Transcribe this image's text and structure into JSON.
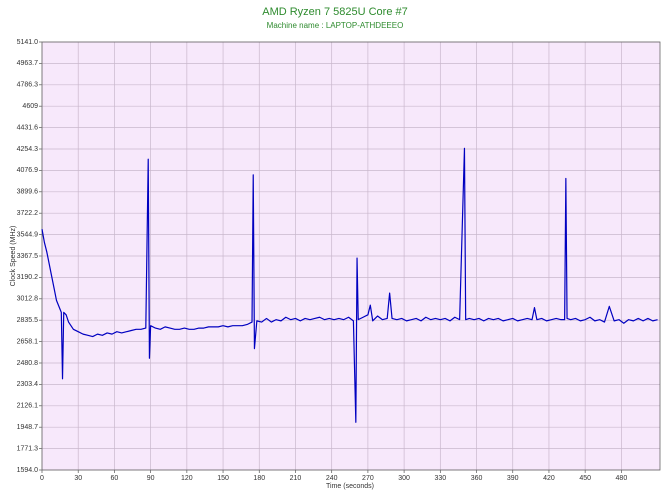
{
  "chart_data": {
    "type": "line",
    "title": "AMD Ryzen 7 5825U Core #7",
    "subtitle": "Machine name : LAPTOP-ATHDEEEO",
    "x_label": "Time (seconds)",
    "y_label": "Clock Speed (MHz)",
    "xlim": [
      0,
      512
    ],
    "ylim": [
      1594.0,
      5141.0
    ],
    "xticks": [
      0,
      30,
      60,
      90,
      120,
      150,
      180,
      210,
      240,
      270,
      300,
      330,
      360,
      390,
      420,
      450,
      480
    ],
    "yticks": [
      {
        "value": 1594.0,
        "label": "1594.0"
      },
      1771.3,
      1948.7,
      2126.1,
      2303.4,
      2480.8,
      2658.1,
      2835.5,
      3012.8,
      3190.2,
      3367.5,
      3544.9,
      3722.2,
      3899.6,
      4076.9,
      4254.3,
      4431.6,
      4609.0,
      4786.3,
      4963.7,
      {
        "value": 5141.0,
        "label": "5141.0"
      }
    ],
    "grid": true,
    "title_color": "#2e8b2e",
    "background": "#f7e8fb",
    "series": [
      {
        "name": "Core #7",
        "color": "#0000c0",
        "x": [
          0,
          2,
          4,
          6,
          8,
          10,
          12,
          14,
          16,
          17,
          18,
          20,
          22,
          26,
          30,
          34,
          38,
          42,
          46,
          50,
          54,
          58,
          62,
          66,
          70,
          74,
          78,
          82,
          86,
          88,
          89,
          90,
          94,
          98,
          102,
          106,
          110,
          114,
          118,
          122,
          126,
          130,
          134,
          138,
          142,
          146,
          150,
          154,
          158,
          162,
          166,
          170,
          174,
          175,
          176,
          178,
          182,
          186,
          190,
          194,
          198,
          202,
          206,
          210,
          214,
          218,
          222,
          226,
          230,
          234,
          238,
          242,
          246,
          250,
          254,
          258,
          260,
          261,
          262,
          266,
          270,
          272,
          274,
          278,
          282,
          286,
          288,
          290,
          294,
          298,
          302,
          306,
          310,
          314,
          318,
          322,
          326,
          330,
          334,
          338,
          342,
          346,
          350,
          351,
          354,
          358,
          362,
          366,
          370,
          374,
          378,
          382,
          386,
          390,
          394,
          398,
          402,
          406,
          408,
          410,
          414,
          418,
          422,
          426,
          430,
          433,
          434,
          435,
          438,
          442,
          446,
          450,
          454,
          458,
          462,
          466,
          470,
          474,
          478,
          482,
          486,
          490,
          494,
          498,
          502,
          506,
          510
        ],
        "values": [
          3590,
          3480,
          3400,
          3300,
          3200,
          3100,
          3000,
          2950,
          2900,
          2350,
          2900,
          2880,
          2820,
          2760,
          2740,
          2720,
          2710,
          2700,
          2720,
          2710,
          2730,
          2720,
          2740,
          2730,
          2740,
          2750,
          2760,
          2760,
          2770,
          4170,
          2520,
          2790,
          2770,
          2760,
          2780,
          2770,
          2760,
          2760,
          2770,
          2760,
          2760,
          2770,
          2770,
          2780,
          2780,
          2780,
          2790,
          2780,
          2790,
          2790,
          2790,
          2800,
          2820,
          4040,
          2600,
          2830,
          2820,
          2850,
          2820,
          2840,
          2830,
          2860,
          2840,
          2850,
          2830,
          2850,
          2840,
          2850,
          2860,
          2840,
          2850,
          2840,
          2850,
          2840,
          2860,
          2830,
          1990,
          3350,
          2840,
          2860,
          2880,
          2960,
          2830,
          2870,
          2840,
          2850,
          3060,
          2850,
          2840,
          2850,
          2830,
          2840,
          2850,
          2830,
          2860,
          2840,
          2850,
          2840,
          2850,
          2830,
          2860,
          2840,
          4260,
          2840,
          2850,
          2840,
          2850,
          2830,
          2850,
          2840,
          2850,
          2830,
          2840,
          2850,
          2830,
          2840,
          2850,
          2840,
          2940,
          2840,
          2850,
          2830,
          2840,
          2850,
          2840,
          2840,
          4010,
          2850,
          2840,
          2850,
          2830,
          2840,
          2860,
          2830,
          2840,
          2820,
          2950,
          2830,
          2840,
          2810,
          2840,
          2830,
          2850,
          2830,
          2850,
          2830,
          2840
        ]
      }
    ]
  }
}
